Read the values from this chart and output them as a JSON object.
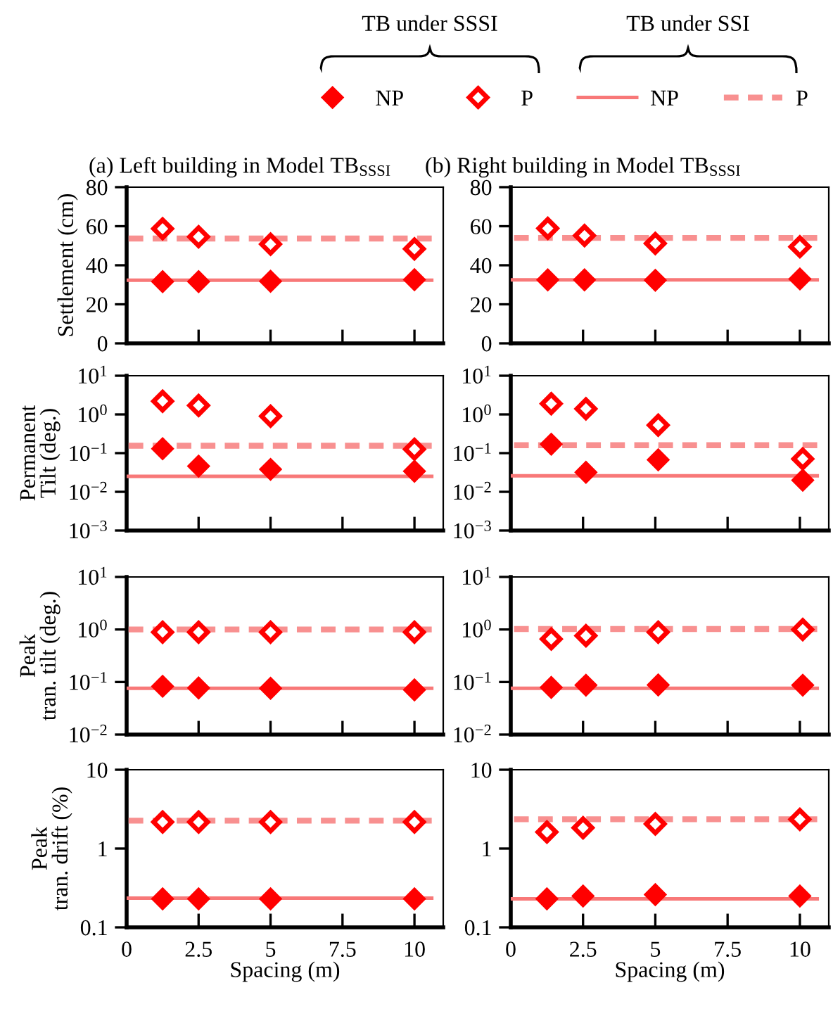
{
  "chart_data": [
    {
      "type": "scatter",
      "title": "(a) Left building in Model TB$_{SSSI}$",
      "ylabel": "Settlement (cm)",
      "annotations": [
        "TB under SSSI",
        "TB under SSI"
      ],
      "legend": "top",
      "xlim": [
        0,
        11
      ],
      "xticks": [
        0,
        2.5,
        5,
        7.5,
        10
      ],
      "ylim": [
        0,
        80
      ],
      "yticks": [
        0,
        20,
        40,
        60,
        80
      ],
      "tick_labels": "y",
      "series": [
        {
          "name": "NP",
          "marker": "diamond",
          "color": "#ff0000",
          "x": [
            1.25,
            2.5,
            5,
            10
          ],
          "values": [
            31.6,
            31.6,
            31.8,
            32.6
          ]
        },
        {
          "name": "P",
          "marker": "diamond",
          "color": "#ff0000",
          "x": [
            1.25,
            2.5,
            5,
            10
          ],
          "values": [
            58.7,
            54.6,
            50.8,
            48.4
          ]
        },
        {
          "name": "NP",
          "type": "line",
          "line_style": "solid",
          "color": "#f87878",
          "x": [
            0,
            10.6
          ],
          "values": [
            32.3,
            32.3
          ]
        },
        {
          "name": "P",
          "type": "line",
          "line_style": "dashed",
          "color": "#f89090",
          "x": [
            0,
            10.6
          ],
          "values": [
            53.7,
            53.7
          ]
        }
      ]
    },
    {
      "type": "scatter",
      "title": "(b) Right building in Model TB$_{SSSI}$",
      "xlim": [
        0,
        11
      ],
      "xticks": [
        0,
        2.5,
        5,
        7.5,
        10
      ],
      "ylim": [
        0,
        80
      ],
      "yticks": [
        0,
        20,
        40,
        60,
        80
      ],
      "tick_labels": "y",
      "series": [
        {
          "marker": "diamond",
          "color": "#ff0000",
          "x": [
            1.28,
            2.55,
            5,
            10
          ],
          "values": [
            32.5,
            32.5,
            32.3,
            33
          ]
        },
        {
          "marker": "diamond",
          "color": "#ff0000",
          "x": [
            1.28,
            2.55,
            5,
            10
          ],
          "values": [
            58.9,
            55.2,
            51.2,
            49.5
          ]
        },
        {
          "type": "line",
          "line_style": "solid",
          "color": "#f87878",
          "x": [
            0,
            10.6
          ],
          "values": [
            32.5,
            32.5
          ]
        },
        {
          "type": "line",
          "line_style": "dashed",
          "color": "#f89090",
          "x": [
            0,
            10.6
          ],
          "values": [
            54,
            54
          ]
        }
      ]
    },
    {
      "type": "scatter",
      "ylabel": "Permanent\nTilt (deg.)",
      "log": "y",
      "xlim": [
        0,
        11
      ],
      "xticks": [
        0,
        2.5,
        5,
        7.5,
        10
      ],
      "ylim": [
        0.001,
        10
      ],
      "yticks": [
        {
          "value": 0.001,
          "label": "10$^{−3}$"
        },
        {
          "value": 0.01,
          "label": "10$^{−2}$"
        },
        {
          "value": 0.1,
          "label": "10$^{−1}$"
        },
        {
          "value": 1,
          "label": "10$^{0}$"
        },
        {
          "value": 10,
          "label": "10$^{1}$"
        }
      ],
      "tick_labels": "y",
      "series": [
        {
          "marker": "diamond",
          "color": "#ff0000",
          "x": [
            1.25,
            2.5,
            5,
            10
          ],
          "values": [
            0.13,
            0.046,
            0.038,
            0.034
          ]
        },
        {
          "marker": "diamond",
          "color": "#ff0000",
          "x": [
            1.25,
            2.5,
            5,
            10
          ],
          "values": [
            2.2,
            1.7,
            0.9,
            0.126
          ]
        },
        {
          "type": "line",
          "line_style": "solid",
          "color": "#f87878",
          "x": [
            0,
            10.6
          ],
          "values": [
            0.025,
            0.025
          ]
        },
        {
          "type": "line",
          "line_style": "dashed",
          "color": "#f89090",
          "x": [
            0,
            10.6
          ],
          "values": [
            0.155,
            0.155
          ]
        }
      ]
    },
    {
      "type": "scatter",
      "log": "y",
      "xlim": [
        0,
        11
      ],
      "xticks": [
        0,
        2.5,
        5,
        7.5,
        10
      ],
      "ylim": [
        0.001,
        10
      ],
      "yticks": [
        {
          "value": 0.001,
          "label": "10$^{−3}$"
        },
        {
          "value": 0.01,
          "label": "10$^{−2}$"
        },
        {
          "value": 0.1,
          "label": "10$^{−1}$"
        },
        {
          "value": 1,
          "label": "10$^{0}$"
        },
        {
          "value": 10,
          "label": "10$^{1}$"
        }
      ],
      "tick_labels": "y",
      "series": [
        {
          "marker": "diamond",
          "color": "#ff0000",
          "x": [
            1.4,
            2.6,
            5.1,
            10.1
          ],
          "values": [
            0.17,
            0.032,
            0.067,
            0.02
          ]
        },
        {
          "marker": "diamond",
          "color": "#ff0000",
          "x": [
            1.4,
            2.6,
            5.1,
            10.1
          ],
          "values": [
            1.9,
            1.4,
            0.53,
            0.071
          ]
        },
        {
          "type": "line",
          "line_style": "solid",
          "color": "#f87878",
          "x": [
            0,
            10.6
          ],
          "values": [
            0.026,
            0.026
          ]
        },
        {
          "type": "line",
          "line_style": "dashed",
          "color": "#f89090",
          "x": [
            0,
            10.6
          ],
          "values": [
            0.16,
            0.16
          ]
        }
      ]
    },
    {
      "type": "scatter",
      "ylabel": "Peak\ntran. tilt (deg.)",
      "log": "y",
      "xlim": [
        0,
        11
      ],
      "xticks": [
        0,
        2.5,
        5,
        7.5,
        10
      ],
      "ylim": [
        0.01,
        10
      ],
      "yticks": [
        {
          "value": 0.01,
          "label": "10$^{−2}$"
        },
        {
          "value": 0.1,
          "label": "10$^{−1}$"
        },
        {
          "value": 1,
          "label": "10$^{0}$"
        },
        {
          "value": 10,
          "label": "10$^{1}$"
        }
      ],
      "tick_labels": "y",
      "series": [
        {
          "marker": "diamond",
          "color": "#ff0000",
          "x": [
            1.25,
            2.5,
            5,
            10
          ],
          "values": [
            0.083,
            0.077,
            0.076,
            0.071
          ]
        },
        {
          "marker": "diamond",
          "color": "#ff0000",
          "x": [
            1.25,
            2.5,
            5,
            10
          ],
          "values": [
            0.89,
            0.89,
            0.89,
            0.89
          ]
        },
        {
          "type": "line",
          "line_style": "solid",
          "color": "#f87878",
          "x": [
            0,
            10.6
          ],
          "values": [
            0.076,
            0.076
          ]
        },
        {
          "type": "line",
          "line_style": "dashed",
          "color": "#f89090",
          "x": [
            0,
            10.6
          ],
          "values": [
            1,
            1
          ]
        }
      ]
    },
    {
      "type": "scatter",
      "log": "y",
      "xlim": [
        0,
        11
      ],
      "xticks": [
        0,
        2.5,
        5,
        7.5,
        10
      ],
      "ylim": [
        0.01,
        10
      ],
      "yticks": [
        {
          "value": 0.01,
          "label": "10$^{−2}$"
        },
        {
          "value": 0.1,
          "label": "10$^{−1}$"
        },
        {
          "value": 1,
          "label": "10$^{0}$"
        },
        {
          "value": 10,
          "label": "10$^{1}$"
        }
      ],
      "tick_labels": "y",
      "series": [
        {
          "marker": "diamond",
          "color": "#ff0000",
          "x": [
            1.4,
            2.6,
            5.1,
            10.1
          ],
          "values": [
            0.079,
            0.087,
            0.088,
            0.087
          ]
        },
        {
          "marker": "diamond",
          "color": "#ff0000",
          "x": [
            1.4,
            2.6,
            5.1,
            10.1
          ],
          "values": [
            0.66,
            0.76,
            0.89,
            1.0
          ]
        },
        {
          "type": "line",
          "line_style": "solid",
          "color": "#f87878",
          "x": [
            0,
            10.6
          ],
          "values": [
            0.076,
            0.076
          ]
        },
        {
          "type": "line",
          "line_style": "dashed",
          "color": "#f89090",
          "x": [
            0,
            10.6
          ],
          "values": [
            1.02,
            1.02
          ]
        }
      ]
    },
    {
      "type": "scatter",
      "ylabel": "Peak\ntran. drift (%)",
      "xlabel": "Spacing (m)",
      "log": "y",
      "xlim": [
        0,
        11
      ],
      "xticks": [
        0,
        2.5,
        5,
        7.5,
        10
      ],
      "ylim": [
        0.1,
        10
      ],
      "yticks": [
        0.1,
        1,
        10
      ],
      "series": [
        {
          "marker": "diamond",
          "color": "#ff0000",
          "x": [
            1.25,
            2.5,
            5,
            10
          ],
          "values": [
            0.23,
            0.23,
            0.23,
            0.23
          ]
        },
        {
          "marker": "diamond",
          "color": "#ff0000",
          "x": [
            1.25,
            2.5,
            5,
            10
          ],
          "values": [
            2.17,
            2.17,
            2.17,
            2.17
          ]
        },
        {
          "type": "line",
          "line_style": "solid",
          "color": "#f87878",
          "x": [
            0,
            10.6
          ],
          "values": [
            0.235,
            0.235
          ]
        },
        {
          "type": "line",
          "line_style": "dashed",
          "color": "#f89090",
          "x": [
            0,
            10.6
          ],
          "values": [
            2.26,
            2.26
          ]
        }
      ]
    },
    {
      "type": "scatter",
      "xlabel": "Spacing (m)",
      "log": "y",
      "xlim": [
        0,
        11
      ],
      "xticks": [
        0,
        2.5,
        5,
        7.5,
        10
      ],
      "ylim": [
        0.1,
        10
      ],
      "yticks": [
        0.1,
        1,
        10
      ],
      "series": [
        {
          "marker": "diamond",
          "color": "#ff0000",
          "x": [
            1.25,
            2.5,
            5,
            10
          ],
          "values": [
            0.23,
            0.25,
            0.26,
            0.25
          ]
        },
        {
          "marker": "diamond",
          "color": "#ff0000",
          "x": [
            1.25,
            2.5,
            5,
            10
          ],
          "values": [
            1.62,
            1.83,
            2.05,
            2.35
          ]
        },
        {
          "type": "line",
          "line_style": "solid",
          "color": "#f87878",
          "x": [
            0,
            10.6
          ],
          "values": [
            0.23,
            0.23
          ]
        },
        {
          "type": "line",
          "line_style": "dashed",
          "color": "#f89090",
          "x": [
            0,
            10.6
          ],
          "values": [
            2.35,
            2.35
          ]
        }
      ]
    }
  ]
}
